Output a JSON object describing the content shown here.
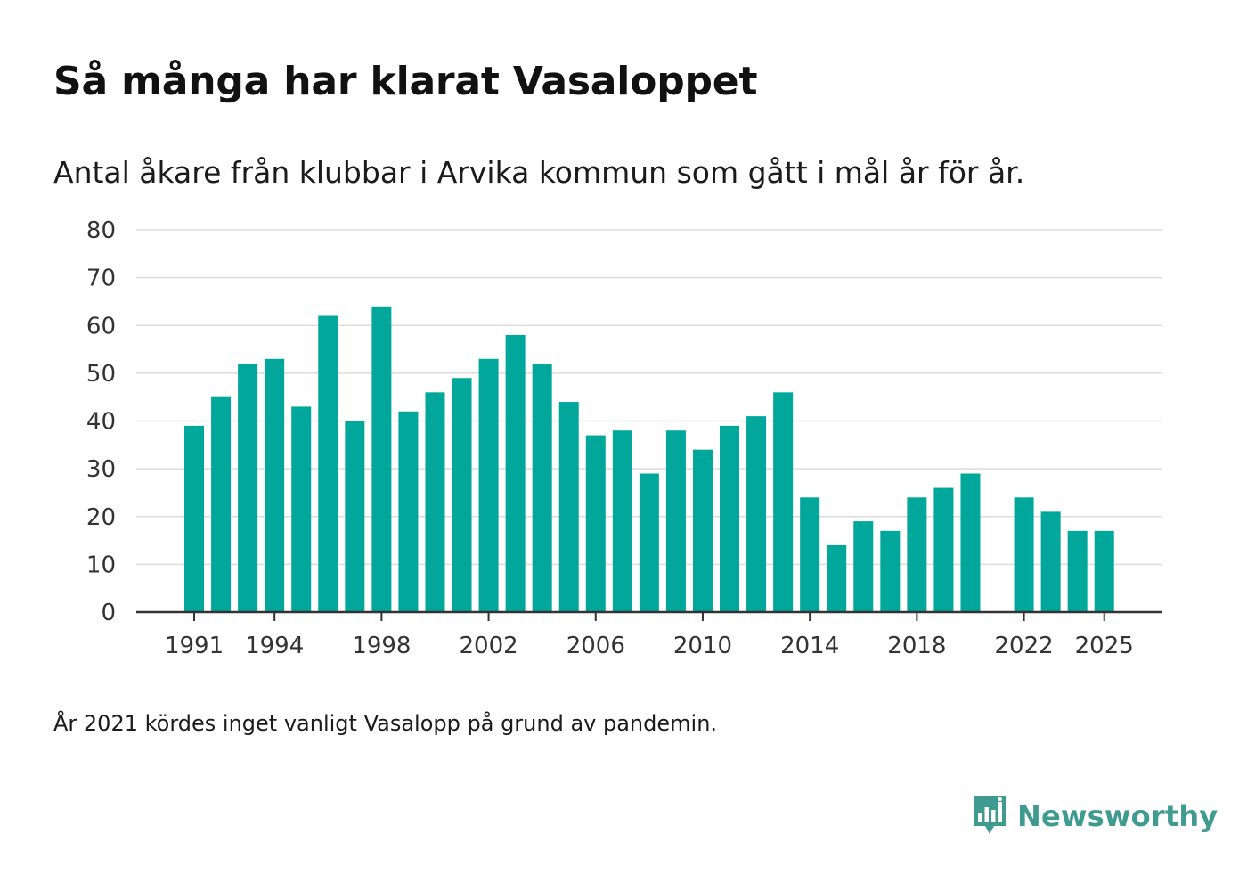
{
  "title": "Så många har klarat Vasaloppet",
  "subtitle": "Antal åkare från klubbar i Arvika kommun som gått i mål år för år.",
  "footnote": "År 2021 kördes inget vanligt Vasalopp på grund av pandemin.",
  "brand": {
    "name": "Newsworthy",
    "logo_icon": "newsworthy-bar-chart-icon"
  },
  "colors": {
    "bar": "#00a79a",
    "grid": "#dcdcdc",
    "axis": "#333333",
    "brand": "#3f9a8f"
  },
  "chart_data": {
    "type": "bar",
    "title": "Så många har klarat Vasaloppet",
    "xlabel": "",
    "ylabel": "",
    "ylim": [
      0,
      80
    ],
    "yticks": [
      0,
      10,
      20,
      30,
      40,
      50,
      60,
      70,
      80
    ],
    "xtick_labels": [
      "1991",
      "1994",
      "1998",
      "2002",
      "2006",
      "2010",
      "2014",
      "2018",
      "2022",
      "2025"
    ],
    "categories": [
      "1991",
      "1992",
      "1993",
      "1994",
      "1995",
      "1996",
      "1997",
      "1998",
      "1999",
      "2000",
      "2001",
      "2002",
      "2003",
      "2004",
      "2005",
      "2006",
      "2007",
      "2008",
      "2009",
      "2010",
      "2011",
      "2012",
      "2013",
      "2014",
      "2015",
      "2016",
      "2017",
      "2018",
      "2019",
      "2020",
      "2021",
      "2022",
      "2023",
      "2024",
      "2025"
    ],
    "values": [
      39,
      45,
      52,
      53,
      43,
      62,
      40,
      64,
      42,
      46,
      49,
      53,
      58,
      52,
      44,
      37,
      38,
      29,
      38,
      34,
      39,
      41,
      46,
      24,
      14,
      19,
      17,
      24,
      26,
      29,
      null,
      24,
      21,
      17,
      17
    ],
    "grid": true
  }
}
